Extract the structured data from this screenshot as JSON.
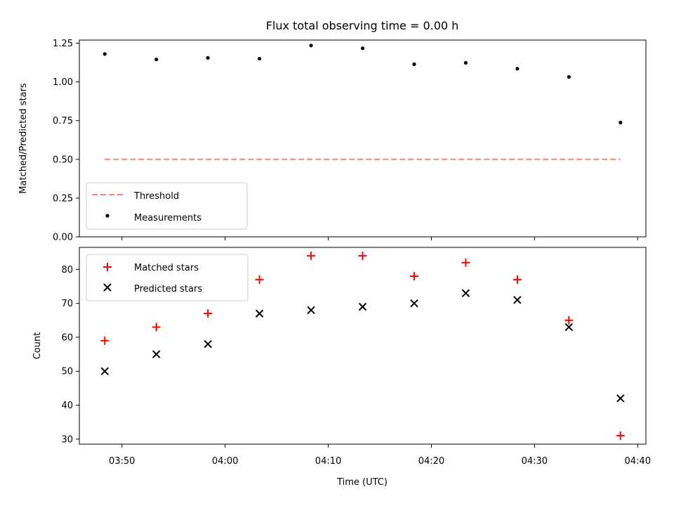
{
  "chart_data": [
    {
      "type": "scatter",
      "title": "Flux total observing time = 0.00 h",
      "xlabel": "",
      "ylabel": "Matched/Predicted stars",
      "ylim": [
        0,
        1.27
      ],
      "yticks": [
        "0.00",
        "0.25",
        "0.50",
        "0.75",
        "1.00",
        "1.25"
      ],
      "x_time": [
        "03:48:20",
        "03:53:20",
        "03:58:20",
        "04:03:20",
        "04:08:20",
        "04:13:20",
        "04:18:20",
        "04:23:20",
        "04:28:20",
        "04:33:20",
        "04:38:20"
      ],
      "series": [
        {
          "name": "Threshold",
          "kind": "dashed-line",
          "color": "#ff7f7f",
          "x_time": [
            "03:48:20",
            "04:38:20"
          ],
          "values": [
            0.5,
            0.5
          ]
        },
        {
          "name": "Measurements",
          "kind": "dot",
          "color": "#000000",
          "values": [
            1.18,
            1.145,
            1.155,
            1.15,
            1.235,
            1.217,
            1.114,
            1.123,
            1.085,
            1.032,
            0.738
          ]
        }
      ],
      "legend": "lower-left",
      "grid": false
    },
    {
      "type": "scatter",
      "title": "",
      "xlabel": "Time (UTC)",
      "ylabel": "Count",
      "ylim": [
        28.5,
        86.5
      ],
      "yticks": [
        "30",
        "40",
        "50",
        "60",
        "70",
        "80"
      ],
      "xticks": [
        "03:50",
        "04:00",
        "04:10",
        "04:20",
        "04:30",
        "04:40"
      ],
      "x_time": [
        "03:48:20",
        "03:53:20",
        "03:58:20",
        "04:03:20",
        "04:08:20",
        "04:13:20",
        "04:18:20",
        "04:23:20",
        "04:28:20",
        "04:33:20",
        "04:38:20"
      ],
      "series": [
        {
          "name": "Matched stars",
          "kind": "plus",
          "color": "#ff0000",
          "values": [
            59,
            63,
            67,
            77,
            84,
            84,
            78,
            82,
            77,
            65,
            31
          ]
        },
        {
          "name": "Predicted stars",
          "kind": "x",
          "color": "#000000",
          "values": [
            50,
            55,
            58,
            67,
            68,
            69,
            70,
            73,
            71,
            63,
            42
          ]
        }
      ],
      "legend": "upper-left",
      "grid": false
    }
  ]
}
